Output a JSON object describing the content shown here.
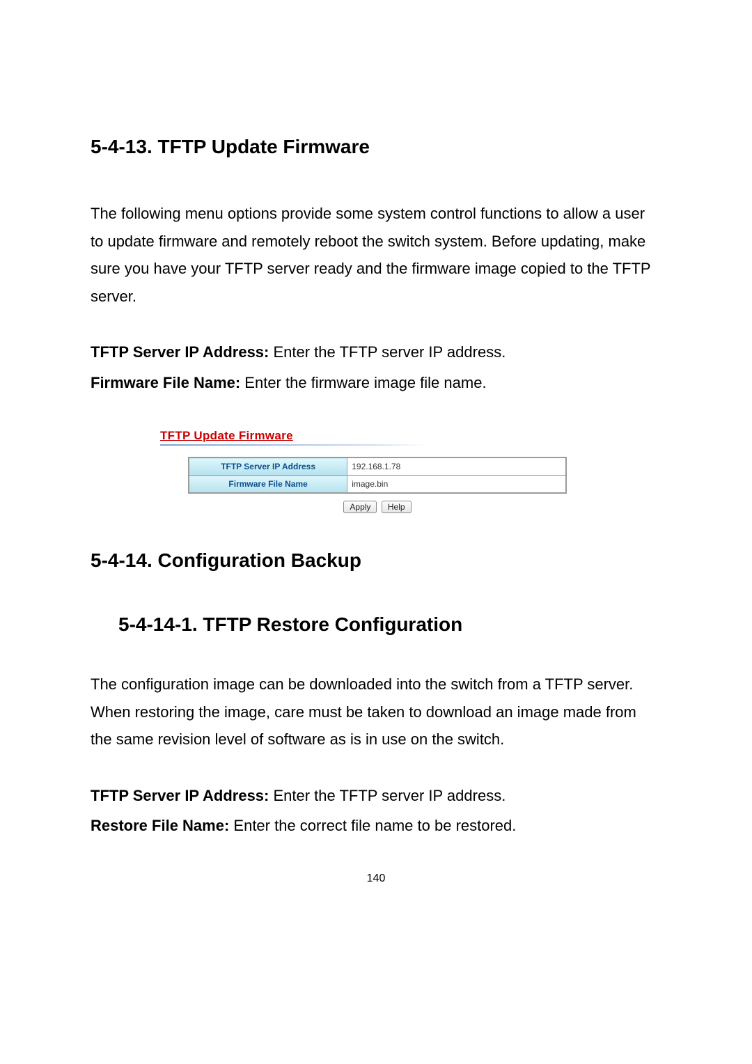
{
  "section1": {
    "heading": "5-4-13. TFTP Update Firmware",
    "para": "The following menu options provide some system control functions to allow a user to update firmware and remotely reboot the switch system. Before updating, make sure you have your TFTP server ready and the firmware image copied to the TFTP server.",
    "def1_label": "TFTP Server IP Address:",
    "def1_text": " Enter the TFTP server IP address.",
    "def2_label": "Firmware File Name:",
    "def2_text": " Enter the firmware image file name."
  },
  "screenshot": {
    "title": "TFTP Update Firmware",
    "row1_label": "TFTP Server IP Address",
    "row1_value": "192.168.1.78",
    "row2_label": "Firmware File Name",
    "row2_value": "image.bin",
    "btn_apply": "Apply",
    "btn_help": "Help",
    "colors": {
      "title_color": "#cc0000",
      "header_grad_start": "#dff6fb",
      "header_grad_end": "#b6e2ef",
      "label_text_color": "#0b4f8a",
      "border_color": "#9a9a9a",
      "underline_start": "#7aa0d0",
      "underline_end": "#cfe0f2"
    }
  },
  "section2": {
    "heading": "5-4-14. Configuration Backup",
    "subheading": "5-4-14-1. TFTP Restore Configuration",
    "para": "The configuration image can be downloaded into the switch from a TFTP server.   When restoring the image, care must be taken to download an image made from the same revision level of software as is in use on the switch.",
    "def1_label": "TFTP Server IP Address:",
    "def1_text": " Enter the TFTP server IP address.",
    "def2_label": "Restore File Name:",
    "def2_text": " Enter the correct file name to be restored."
  },
  "page_number": "140"
}
